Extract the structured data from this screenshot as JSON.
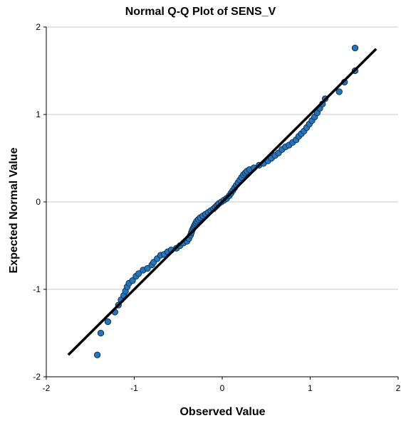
{
  "chart_data": {
    "type": "scatter",
    "title": "Normal Q-Q Plot of SENS_V",
    "xlabel": "Observed Value",
    "ylabel": "Expected Normal Value",
    "xlim": [
      -2,
      2
    ],
    "ylim": [
      -2,
      2
    ],
    "x_ticks": [
      "-2",
      "-1",
      "0",
      "1",
      "2"
    ],
    "y_ticks": [
      "2",
      "1",
      "0",
      "-1",
      "-2"
    ],
    "grid": "horizontal",
    "reference_line": {
      "from": [
        -1.75,
        -1.75
      ],
      "to": [
        1.75,
        1.75
      ]
    },
    "point_color": "#1f77c4",
    "points": [
      [
        -1.42,
        -1.75
      ],
      [
        -1.38,
        -1.5
      ],
      [
        -1.3,
        -1.37
      ],
      [
        -1.22,
        -1.26
      ],
      [
        -1.18,
        -1.18
      ],
      [
        -1.15,
        -1.12
      ],
      [
        -1.12,
        -1.07
      ],
      [
        -1.1,
        -1.02
      ],
      [
        -1.08,
        -0.97
      ],
      [
        -1.06,
        -0.93
      ],
      [
        -1.02,
        -0.9
      ],
      [
        -0.98,
        -0.85
      ],
      [
        -0.95,
        -0.82
      ],
      [
        -0.9,
        -0.78
      ],
      [
        -0.85,
        -0.76
      ],
      [
        -0.8,
        -0.72
      ],
      [
        -0.78,
        -0.69
      ],
      [
        -0.74,
        -0.65
      ],
      [
        -0.7,
        -0.61
      ],
      [
        -0.66,
        -0.6
      ],
      [
        -0.62,
        -0.57
      ],
      [
        -0.58,
        -0.55
      ],
      [
        -0.52,
        -0.53
      ],
      [
        -0.48,
        -0.5
      ],
      [
        -0.44,
        -0.47
      ],
      [
        -0.4,
        -0.45
      ],
      [
        -0.38,
        -0.42
      ],
      [
        -0.36,
        -0.38
      ],
      [
        -0.35,
        -0.35
      ],
      [
        -0.34,
        -0.32
      ],
      [
        -0.33,
        -0.3
      ],
      [
        -0.32,
        -0.28
      ],
      [
        -0.31,
        -0.26
      ],
      [
        -0.3,
        -0.24
      ],
      [
        -0.29,
        -0.22
      ],
      [
        -0.27,
        -0.2
      ],
      [
        -0.25,
        -0.18
      ],
      [
        -0.22,
        -0.16
      ],
      [
        -0.19,
        -0.14
      ],
      [
        -0.16,
        -0.12
      ],
      [
        -0.13,
        -0.1
      ],
      [
        -0.1,
        -0.08
      ],
      [
        -0.08,
        -0.06
      ],
      [
        -0.06,
        -0.04
      ],
      [
        -0.04,
        -0.02
      ],
      [
        -0.01,
        0.0
      ],
      [
        0.02,
        0.02
      ],
      [
        0.05,
        0.04
      ],
      [
        0.08,
        0.07
      ],
      [
        0.1,
        0.1
      ],
      [
        0.12,
        0.13
      ],
      [
        0.14,
        0.16
      ],
      [
        0.16,
        0.19
      ],
      [
        0.18,
        0.22
      ],
      [
        0.2,
        0.25
      ],
      [
        0.22,
        0.28
      ],
      [
        0.24,
        0.31
      ],
      [
        0.26,
        0.33
      ],
      [
        0.28,
        0.35
      ],
      [
        0.31,
        0.37
      ],
      [
        0.36,
        0.39
      ],
      [
        0.42,
        0.42
      ],
      [
        0.47,
        0.44
      ],
      [
        0.52,
        0.47
      ],
      [
        0.56,
        0.5
      ],
      [
        0.6,
        0.53
      ],
      [
        0.64,
        0.56
      ],
      [
        0.68,
        0.6
      ],
      [
        0.72,
        0.63
      ],
      [
        0.76,
        0.65
      ],
      [
        0.8,
        0.68
      ],
      [
        0.84,
        0.71
      ],
      [
        0.87,
        0.75
      ],
      [
        0.9,
        0.78
      ],
      [
        0.93,
        0.81
      ],
      [
        0.96,
        0.85
      ],
      [
        0.99,
        0.89
      ],
      [
        1.02,
        0.93
      ],
      [
        1.05,
        0.97
      ],
      [
        1.08,
        1.02
      ],
      [
        1.11,
        1.07
      ],
      [
        1.14,
        1.12
      ],
      [
        1.17,
        1.18
      ],
      [
        1.33,
        1.26
      ],
      [
        1.39,
        1.37
      ],
      [
        1.51,
        1.5
      ],
      [
        1.51,
        1.76
      ]
    ]
  }
}
